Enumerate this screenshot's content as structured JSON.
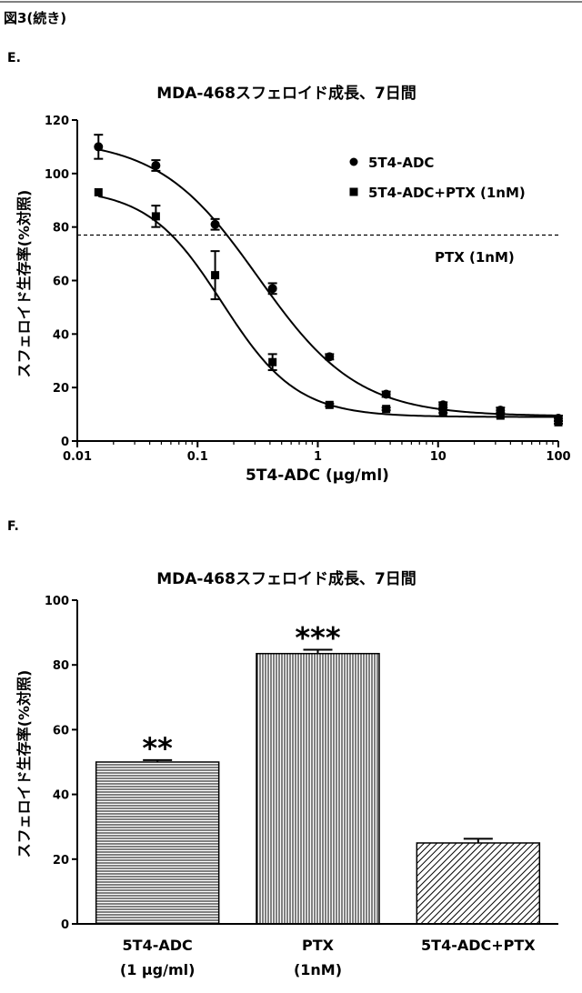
{
  "figure_label": "図3(続き)",
  "chart_data": [
    {
      "panel": "E.",
      "type": "line",
      "title": "MDA-468スフェロイド成長、7日間",
      "xlabel": "5T4-ADC (µg/ml)",
      "ylabel": "スフェロイド生存率(%対照)",
      "x_scale": "log",
      "xlim": [
        0.01,
        100
      ],
      "ylim": [
        0,
        120
      ],
      "x_ticks": [
        0.01,
        0.1,
        1,
        10,
        100
      ],
      "x_tick_labels": [
        "0.01",
        "0.1",
        "1",
        "10",
        "100"
      ],
      "y_ticks": [
        0,
        20,
        40,
        60,
        80,
        100,
        120
      ],
      "y_tick_labels": [
        "0",
        "20",
        "40",
        "60",
        "80",
        "100",
        "120"
      ],
      "legend_position": "top-right",
      "series": [
        {
          "name": "5T4-ADC",
          "marker": "circle",
          "x": [
            0.015,
            0.045,
            0.14,
            0.42,
            1.25,
            3.7,
            11,
            33,
            100
          ],
          "y": [
            110,
            103,
            81,
            57,
            31.5,
            17.5,
            13.5,
            11.5,
            8.5
          ],
          "err": [
            4.5,
            2,
            2,
            2,
            1,
            1,
            1,
            1,
            1
          ],
          "fit": {
            "top": 113,
            "bottom": 9.3,
            "ec50": 0.32,
            "hill": 1.05
          }
        },
        {
          "name": "5T4-ADC+PTX (1nM)",
          "marker": "square",
          "x": [
            0.015,
            0.045,
            0.14,
            0.42,
            1.25,
            3.7,
            11,
            33,
            100
          ],
          "y": [
            93,
            84,
            62,
            29.5,
            13.5,
            12,
            11,
            9.5,
            7
          ],
          "err": [
            0,
            4,
            9,
            3,
            0.5,
            0.5,
            0.5,
            0.5,
            0.5
          ],
          "fit": {
            "top": 94.5,
            "bottom": 9.0,
            "ec50": 0.16,
            "hill": 1.4
          }
        }
      ],
      "reference_line": {
        "label": "PTX (1nM)",
        "y": 77,
        "style": "dashed"
      }
    },
    {
      "panel": "F.",
      "type": "bar",
      "title": "MDA-468スフェロイド成長、7日間",
      "ylabel": "スフェロイド生存率(%対照)",
      "ylim": [
        0,
        100
      ],
      "y_ticks": [
        0,
        20,
        40,
        60,
        80,
        100
      ],
      "y_tick_labels": [
        "0",
        "20",
        "40",
        "60",
        "80",
        "100"
      ],
      "categories": [
        {
          "line1": "5T4-ADC",
          "line2": "(1 µg/ml)"
        },
        {
          "line1": "PTX",
          "line2": "(1nM)"
        },
        {
          "line1": "5T4-ADC+PTX",
          "line2": ""
        }
      ],
      "values": [
        50,
        83.5,
        25
      ],
      "errors": [
        0.6,
        1.2,
        1.3
      ],
      "significance": [
        "**",
        "***",
        ""
      ],
      "patterns": [
        "horizontal",
        "vertical",
        "diagonal"
      ]
    }
  ]
}
